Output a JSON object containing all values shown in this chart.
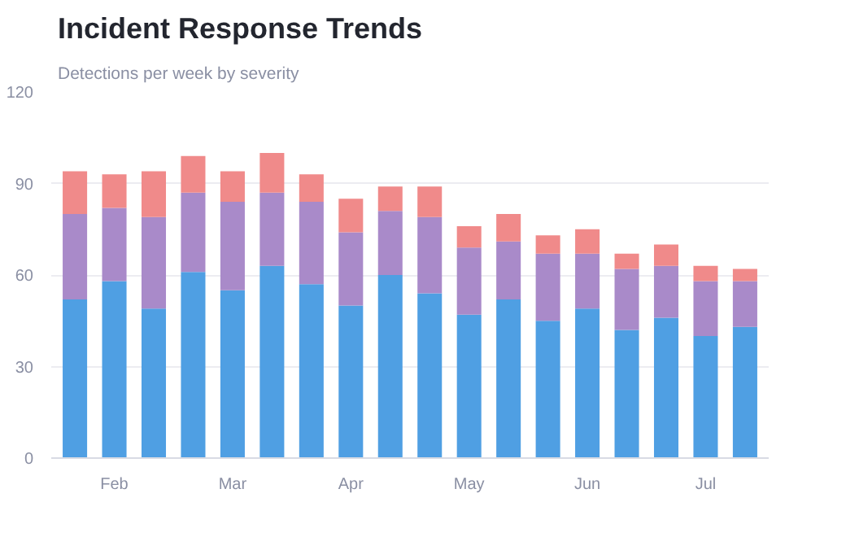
{
  "chart_data": {
    "type": "bar",
    "title": "Incident Response Trends",
    "subtitle": "Detections per week by severity",
    "categories": [
      null,
      "Feb",
      null,
      null,
      "Mar",
      null,
      null,
      "Apr",
      null,
      null,
      "May",
      null,
      null,
      "Jun",
      null,
      null,
      "Jul",
      null
    ],
    "stacked": true,
    "series": [
      {
        "color": "#4f9fe3",
        "values": [
          52,
          58,
          49,
          61,
          55,
          63,
          57,
          50,
          60,
          54,
          47,
          52,
          45,
          49,
          42,
          46,
          40,
          43
        ]
      },
      {
        "color": "#a98ac9",
        "values": [
          28,
          24,
          30,
          26,
          29,
          24,
          27,
          24,
          21,
          25,
          22,
          19,
          22,
          18,
          20,
          17,
          18,
          15
        ]
      },
      {
        "color": "#f08a8a",
        "values": [
          14,
          11,
          15,
          12,
          10,
          13,
          9,
          11,
          8,
          10,
          7,
          9,
          6,
          8,
          5,
          7,
          5,
          4
        ]
      }
    ],
    "ylim": [
      0,
      120
    ],
    "yticks": [
      0,
      30,
      60,
      90,
      120
    ],
    "grid": "y"
  }
}
